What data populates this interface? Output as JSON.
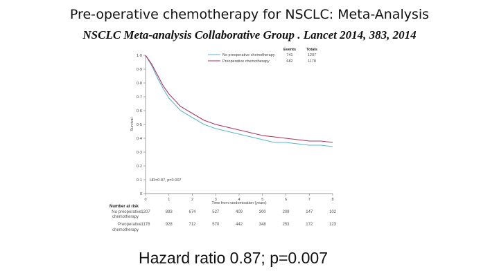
{
  "slide": {
    "title": "Pre-operative chemotherapy for NSCLC: Meta-Analysis",
    "subtitle": "NSCLC Meta-analysis Collaborative Group . Lancet 2014, 383, 2014",
    "caption": "Hazard ratio 0.87; p=0.007"
  },
  "chart_data": {
    "type": "line",
    "xlabel": "Time from randomisation (years)",
    "ylabel": "Survival",
    "xlim": [
      0,
      8
    ],
    "ylim": [
      0,
      1.0
    ],
    "x_ticks": [
      "0",
      "1",
      "2",
      "3",
      "4",
      "5",
      "6",
      "7",
      "8"
    ],
    "y_ticks": [
      "0",
      "0·1",
      "0·2",
      "0·3",
      "0·4",
      "0·5",
      "0·6",
      "0·7",
      "0·8",
      "0·9",
      "1·0"
    ],
    "legend": {
      "header_events": "Events",
      "header_totals": "Totals",
      "placement": "top-right"
    },
    "annotation": "HR=0·87, p=0·007",
    "series": [
      {
        "name": "No preoperative chemotherapy",
        "color": "#5bb7d0",
        "events": "741",
        "total": "1207",
        "x": [
          0,
          0.25,
          0.5,
          0.75,
          1,
          1.5,
          2,
          2.5,
          3,
          3.5,
          4,
          4.5,
          5,
          5.5,
          6,
          6.5,
          7,
          7.5,
          8
        ],
        "y": [
          1.0,
          0.93,
          0.84,
          0.76,
          0.69,
          0.6,
          0.55,
          0.5,
          0.47,
          0.45,
          0.43,
          0.41,
          0.39,
          0.37,
          0.37,
          0.36,
          0.35,
          0.35,
          0.34
        ]
      },
      {
        "name": "Preoperative chemotherapy",
        "color": "#b03060",
        "events": "682",
        "total": "1178",
        "x": [
          0,
          0.25,
          0.5,
          0.75,
          1,
          1.5,
          2,
          2.5,
          3,
          3.5,
          4,
          4.5,
          5,
          5.5,
          6,
          6.5,
          7,
          7.5,
          8
        ],
        "y": [
          1.0,
          0.94,
          0.86,
          0.78,
          0.72,
          0.63,
          0.58,
          0.53,
          0.5,
          0.48,
          0.46,
          0.44,
          0.42,
          0.41,
          0.4,
          0.39,
          0.38,
          0.38,
          0.37
        ]
      }
    ],
    "risk_table": {
      "header": "Number at risk",
      "rows": [
        {
          "label": [
            "No preoperative",
            "chemotherapy"
          ],
          "values": [
            "1207",
            "893",
            "674",
            "527",
            "409",
            "300",
            "209",
            "147",
            "102"
          ]
        },
        {
          "label": [
            "Preoperative",
            "chemotherapy"
          ],
          "values": [
            "1178",
            "928",
            "712",
            "570",
            "442",
            "348",
            "253",
            "172",
            "123"
          ]
        }
      ]
    }
  }
}
